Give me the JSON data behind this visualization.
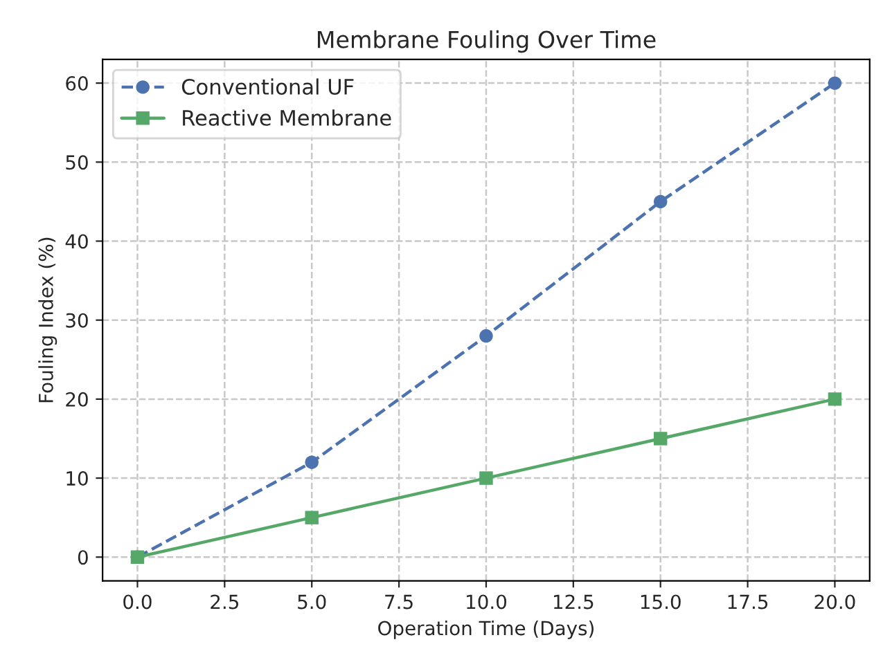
{
  "chart_data": {
    "type": "line",
    "title": "Membrane Fouling Over Time",
    "xlabel": "Operation Time (Days)",
    "ylabel": "Fouling Index (%)",
    "x": [
      0,
      5,
      10,
      15,
      20
    ],
    "series": [
      {
        "name": "Conventional UF",
        "color": "#4c72b0",
        "values": [
          0,
          12,
          28,
          45,
          60
        ],
        "marker": "circle",
        "line_style": "dashed"
      },
      {
        "name": "Reactive Membrane",
        "color": "#55a868",
        "values": [
          0,
          5,
          10,
          15,
          20
        ],
        "marker": "square",
        "line_style": "solid"
      }
    ],
    "xlim": [
      -1,
      21
    ],
    "xticks": [
      {
        "value": 0,
        "label": "0.0"
      },
      {
        "value": 2.5,
        "label": "2.5"
      },
      {
        "value": 5,
        "label": "5.0"
      },
      {
        "value": 7.5,
        "label": "7.5"
      },
      {
        "value": 10,
        "label": "10.0"
      },
      {
        "value": 12.5,
        "label": "12.5"
      },
      {
        "value": 15,
        "label": "15.0"
      },
      {
        "value": 17.5,
        "label": "17.5"
      },
      {
        "value": 20,
        "label": "20.0"
      }
    ],
    "ylim": [
      -3,
      63
    ],
    "yticks": [
      0,
      10,
      20,
      30,
      40,
      50,
      60
    ],
    "grid": true,
    "legend": "top left"
  }
}
